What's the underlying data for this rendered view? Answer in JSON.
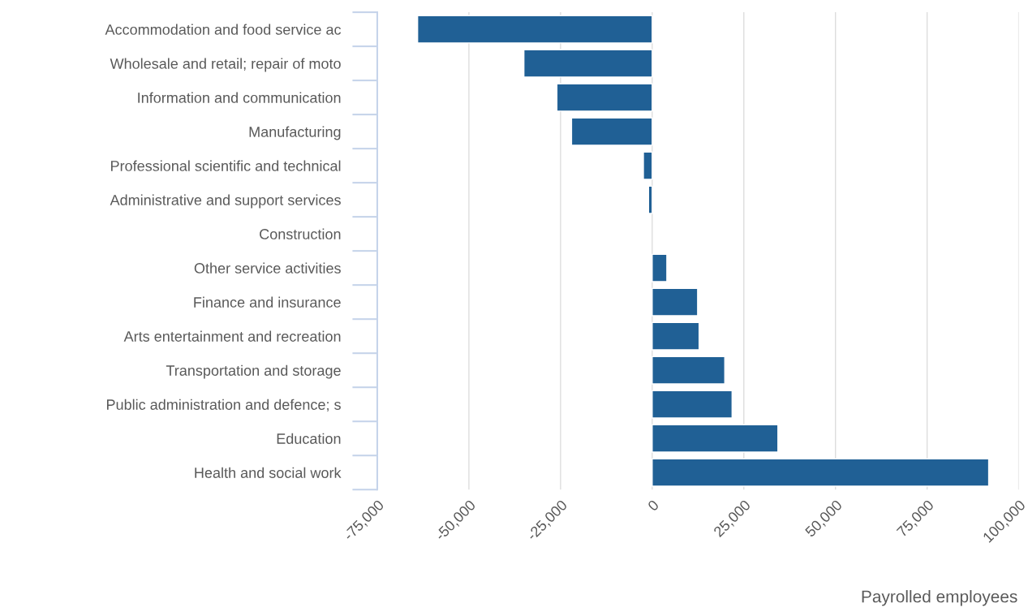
{
  "chart_data": {
    "type": "bar",
    "orientation": "horizontal",
    "xlabel": "Payrolled employees",
    "categories": [
      "Accommodation and food service ac",
      "Wholesale and retail; repair of moto",
      "Information and communication",
      "Manufacturing",
      "Professional scientific and technical",
      "Administrative and support services",
      "Construction",
      "Other service activities",
      "Finance and insurance",
      "Arts entertainment and recreation",
      "Transportation and storage",
      "Public administration and defence; s",
      "Education",
      "Health and social work"
    ],
    "values": [
      -64000,
      -35000,
      -26000,
      -22000,
      -2400,
      -1000,
      null,
      4000,
      12400,
      12800,
      19800,
      21800,
      34300,
      91800
    ],
    "color": "#206095",
    "xlim": [
      -75000,
      100000
    ],
    "xticks": [
      {
        "value": -75000,
        "label": "-75,000"
      },
      {
        "value": -50000,
        "label": "-50,000"
      },
      {
        "value": -25000,
        "label": "-25,000"
      },
      0,
      {
        "value": 25000,
        "label": "25,000"
      },
      {
        "value": 50000,
        "label": "50,000"
      },
      {
        "value": 75000,
        "label": "75,000"
      },
      {
        "value": 100000,
        "label": "100,000"
      }
    ],
    "grid": "x",
    "legend": false
  }
}
